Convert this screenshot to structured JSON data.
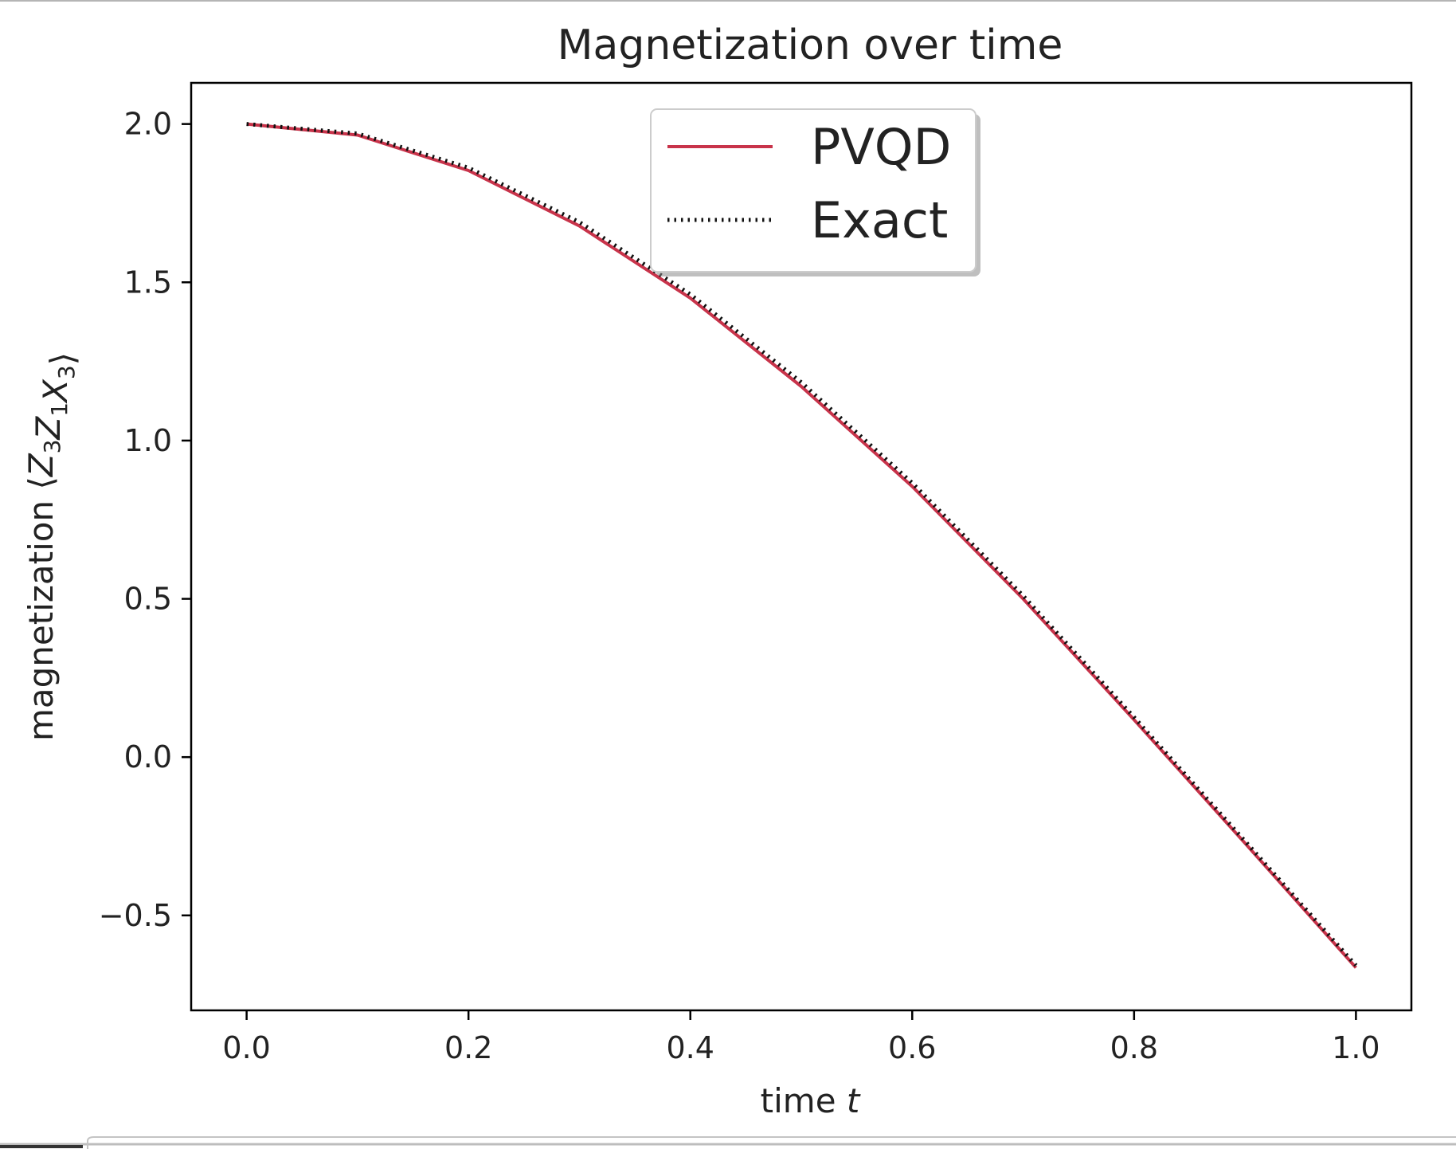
{
  "chart_data": {
    "type": "line",
    "title": "Magnetization over time",
    "xlabel": "time",
    "xlabel_var": "t",
    "ylabel": "magnetization ⟨Z₃Z₁X₃⟩",
    "ylabel_prefix": "magnetization ⟨",
    "ylabel_terms": [
      {
        "base": "Z",
        "sub": "3"
      },
      {
        "base": "Z",
        "sub": "1"
      },
      {
        "base": "X",
        "sub": "3"
      }
    ],
    "ylabel_suffix": "⟩",
    "xlim": [
      -0.05,
      1.05
    ],
    "ylim": [
      -0.8,
      2.13
    ],
    "xticks": [
      0.0,
      0.2,
      0.4,
      0.6,
      0.8,
      1.0
    ],
    "xtick_labels": [
      "0.0",
      "0.2",
      "0.4",
      "0.6",
      "0.8",
      "1.0"
    ],
    "yticks": [
      -0.5,
      0.0,
      0.5,
      1.0,
      1.5,
      2.0
    ],
    "ytick_labels": [
      "−0.5",
      "0.0",
      "0.5",
      "1.0",
      "1.5",
      "2.0"
    ],
    "grid": false,
    "legend_position": "top-center",
    "x": [
      0.0,
      0.1,
      0.2,
      0.3,
      0.4,
      0.5,
      0.6,
      0.7,
      0.8,
      0.9,
      1.0
    ],
    "series": [
      {
        "name": "PVQD",
        "color": "#c8334a",
        "style": "solid",
        "values": [
          2.0,
          1.965,
          1.853,
          1.678,
          1.45,
          1.171,
          0.855,
          0.5,
          0.118,
          -0.272,
          -0.665
        ]
      },
      {
        "name": "Exact",
        "color": "#111111",
        "style": "dotted",
        "values": [
          2.0,
          1.97,
          1.862,
          1.69,
          1.462,
          1.184,
          0.866,
          0.51,
          0.126,
          -0.265,
          -0.658
        ]
      }
    ]
  }
}
